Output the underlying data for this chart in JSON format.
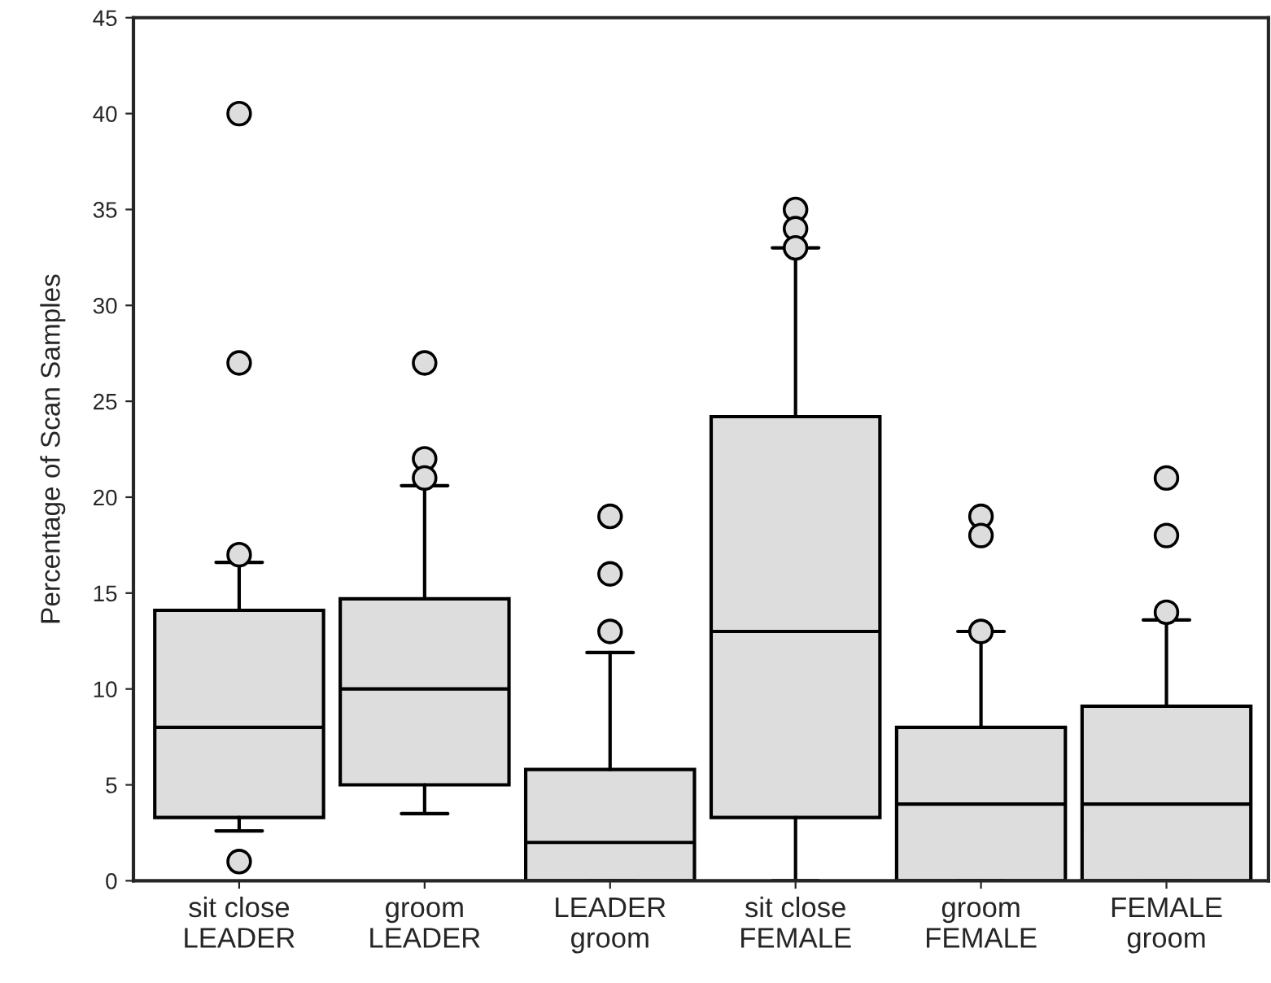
{
  "chart_data": {
    "type": "box",
    "ylabel": "Percentage of Scan Samples",
    "categories": [
      "sit close\nLEADER",
      "groom\nLEADER",
      "LEADER\ngroom",
      "sit close\nFEMALE",
      "groom\nFEMALE",
      "FEMALE\ngroom"
    ],
    "color": "#dddddd",
    "boxes": [
      {
        "low": 2.6,
        "q1": 3.3,
        "median": 8,
        "q3": 14.1,
        "high": 16.6,
        "outliers": [
          40,
          27,
          17,
          1
        ]
      },
      {
        "low": 3.5,
        "q1": 5,
        "median": 10,
        "q3": 14.7,
        "high": 20.6,
        "outliers": [
          27,
          22,
          21
        ]
      },
      {
        "low": 0,
        "q1": 0,
        "median": 2,
        "q3": 5.8,
        "high": 11.9,
        "outliers": [
          19,
          16,
          13
        ]
      },
      {
        "low": 0,
        "q1": 3.3,
        "median": 13,
        "q3": 24.2,
        "high": 33,
        "outliers": [
          35,
          34,
          33
        ]
      },
      {
        "low": 0,
        "q1": 0,
        "median": 4,
        "q3": 8,
        "high": 13,
        "outliers": [
          19,
          18,
          13
        ]
      },
      {
        "low": 0,
        "q1": 0,
        "median": 4,
        "q3": 9.1,
        "high": 13.6,
        "outliers": [
          21,
          18,
          14
        ]
      }
    ],
    "ylim": [
      0,
      45
    ],
    "yticks": [
      0,
      5,
      10,
      15,
      20,
      25,
      30,
      35,
      40,
      45
    ],
    "grid": false,
    "legend": false,
    "marker": "circle"
  }
}
